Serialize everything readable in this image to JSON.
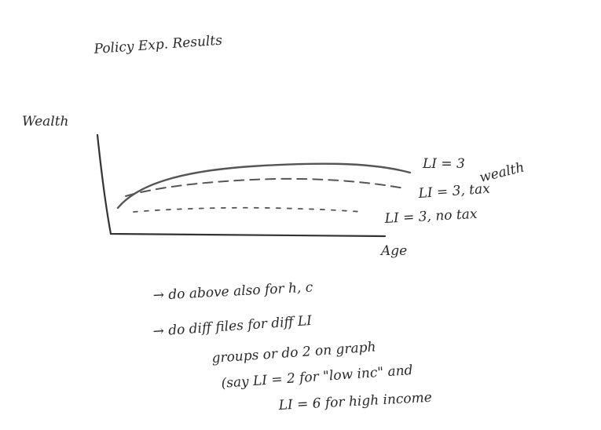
{
  "title": "Policy Exp. Results",
  "y_axis_label": "Wealth",
  "x_axis_label": "Age",
  "curve_labels": [
    "LI = 3",
    "wealth",
    "LI = 3, tax",
    "LI = 3, no tax"
  ],
  "notes": [
    "→ do above also for h, c",
    "→ do diff files for diff LI",
    "groups or do 2 on graph",
    "(say LI = 2 for \"low inc\" and",
    "LI = 6 for high income"
  ]
}
